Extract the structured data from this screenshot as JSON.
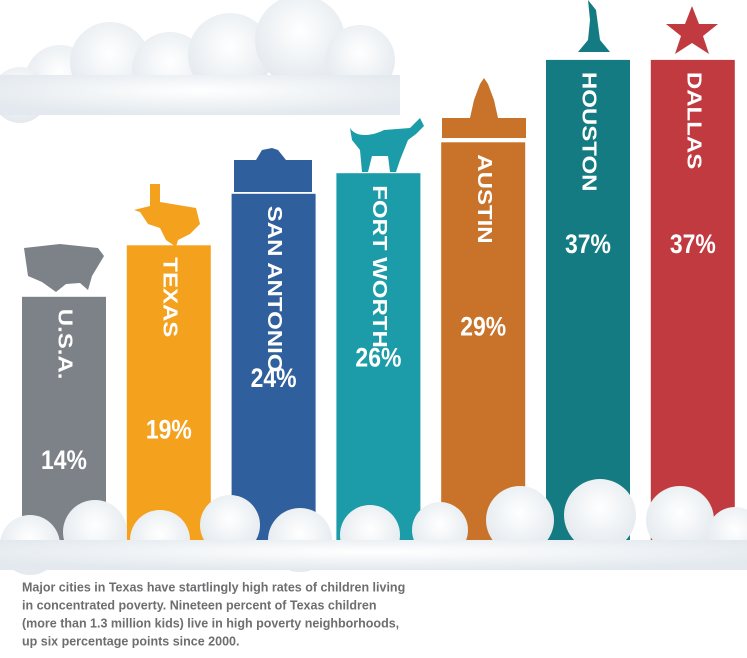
{
  "chart_data": {
    "type": "bar",
    "categories": [
      "U.S.A.",
      "TEXAS",
      "SAN ANTONIO",
      "FORT WORTH",
      "AUSTIN",
      "HOUSTON",
      "DALLAS"
    ],
    "values": [
      14,
      19,
      24,
      26,
      29,
      37,
      37
    ],
    "value_labels": [
      "14%",
      "19%",
      "24%",
      "26%",
      "29%",
      "37%",
      "37%"
    ],
    "colors": [
      "#7d8288",
      "#f4a11d",
      "#2f5f9c",
      "#1c9ba8",
      "#c9722a",
      "#137b81",
      "#c03a40"
    ],
    "caption": [
      "Major cities in Texas have startlingly high rates of children living",
      "in concentrated poverty. Nineteen percent of Texas children",
      "(more than 1.3 million kids) live in high poverty neighborhoods,",
      "up six percentage points since 2000."
    ]
  }
}
